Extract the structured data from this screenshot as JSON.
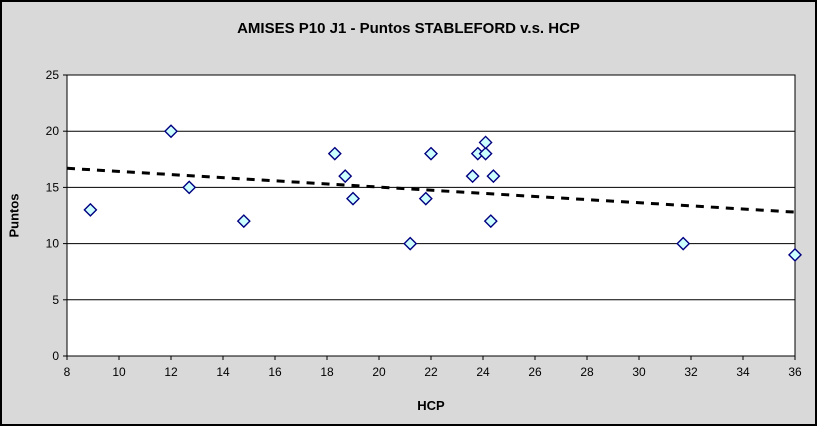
{
  "window": {
    "background_color": "#D9D9D9",
    "plot_background_color": "#FFFFFF",
    "border_color": "#000000",
    "gridline_color": "#000000"
  },
  "chart_data": {
    "type": "scatter",
    "title": "AMISES P10 J1 - Puntos STABLEFORD v.s. HCP",
    "xlabel": "HCP",
    "ylabel": "Puntos",
    "xlim": [
      8,
      36
    ],
    "ylim": [
      0,
      25
    ],
    "x_ticks": [
      8,
      10,
      12,
      14,
      16,
      18,
      20,
      22,
      24,
      26,
      28,
      30,
      32,
      34,
      36
    ],
    "y_ticks": [
      0,
      5,
      10,
      15,
      20,
      25
    ],
    "grid": "horizontal-only",
    "legend": "none",
    "series": [
      {
        "name": "Puntos STABLEFORD",
        "marker": "diamond",
        "marker_fill": "#CCFFFF",
        "marker_stroke": "#000080",
        "points": [
          [
            8.9,
            13
          ],
          [
            12.0,
            20
          ],
          [
            12.7,
            15
          ],
          [
            14.8,
            12
          ],
          [
            18.3,
            18
          ],
          [
            18.7,
            16
          ],
          [
            19.0,
            14
          ],
          [
            21.2,
            10
          ],
          [
            21.8,
            14
          ],
          [
            22.0,
            18
          ],
          [
            23.6,
            16
          ],
          [
            23.8,
            18
          ],
          [
            24.1,
            18
          ],
          [
            24.1,
            19
          ],
          [
            24.3,
            12
          ],
          [
            24.4,
            16
          ],
          [
            31.7,
            10
          ],
          [
            36.0,
            9
          ]
        ]
      }
    ],
    "trendline": {
      "style": "dashed",
      "color": "#000000",
      "x1": 8,
      "y1": 16.7,
      "x2": 36,
      "y2": 12.8
    }
  }
}
